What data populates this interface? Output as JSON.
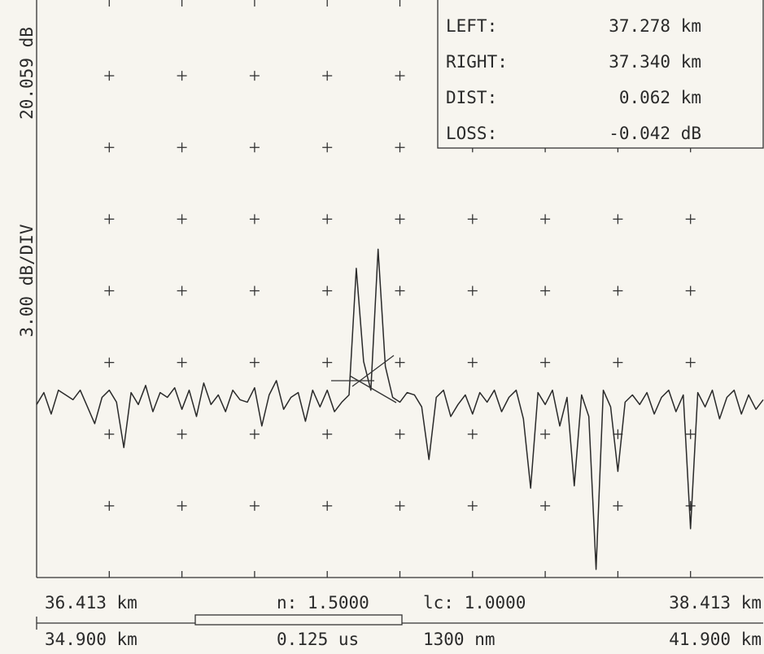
{
  "chart_data": {
    "type": "line",
    "y_label_top": "20.059 dB",
    "y_label": "3.00 dB/DIV",
    "xlim": [
      36.413,
      38.413
    ],
    "xticks": [
      {
        "value": 36.413,
        "label": "36.413 km"
      },
      {
        "value": 38.413,
        "label": "38.413 km"
      }
    ],
    "ylim": [
      -3.941,
      20.059
    ],
    "grid_x": [
      36.613,
      36.813,
      37.013,
      37.213,
      37.413,
      37.613,
      37.813,
      38.013,
      38.213
    ],
    "grid_y": [
      17.059,
      14.059,
      11.059,
      8.059,
      5.059,
      2.059,
      -0.941
    ],
    "color": "#2a2a2a",
    "x": [
      36.413,
      36.433,
      36.453,
      36.473,
      36.493,
      36.513,
      36.533,
      36.553,
      36.573,
      36.593,
      36.613,
      36.633,
      36.653,
      36.673,
      36.693,
      36.713,
      36.733,
      36.753,
      36.773,
      36.793,
      36.813,
      36.833,
      36.853,
      36.873,
      36.893,
      36.913,
      36.933,
      36.953,
      36.973,
      36.993,
      37.013,
      37.033,
      37.053,
      37.073,
      37.093,
      37.113,
      37.133,
      37.153,
      37.173,
      37.193,
      37.213,
      37.233,
      37.253,
      37.273,
      37.293,
      37.313,
      37.333,
      37.353,
      37.373,
      37.393,
      37.413,
      37.433,
      37.453,
      37.473,
      37.493,
      37.513,
      37.533,
      37.553,
      37.573,
      37.593,
      37.613,
      37.633,
      37.653,
      37.673,
      37.693,
      37.713,
      37.733,
      37.753,
      37.773,
      37.793,
      37.813,
      37.833,
      37.853,
      37.873,
      37.893,
      37.913,
      37.933,
      37.953,
      37.973,
      37.993,
      38.013,
      38.033,
      38.053,
      38.073,
      38.093,
      38.113,
      38.133,
      38.153,
      38.173,
      38.193,
      38.213,
      38.233,
      38.253,
      38.273,
      38.293,
      38.313,
      38.333,
      38.353,
      38.373,
      38.393,
      38.413
    ],
    "values": [
      3.3,
      3.8,
      2.9,
      3.9,
      3.7,
      3.5,
      3.9,
      3.2,
      2.5,
      3.6,
      3.9,
      3.4,
      1.5,
      3.8,
      3.3,
      4.1,
      3.0,
      3.8,
      3.6,
      4.0,
      3.1,
      3.9,
      2.8,
      4.2,
      3.3,
      3.7,
      3.0,
      3.9,
      3.5,
      3.4,
      4.0,
      2.4,
      3.7,
      4.3,
      3.1,
      3.6,
      3.8,
      2.6,
      3.9,
      3.2,
      3.9,
      3.0,
      3.4,
      3.7,
      9.0,
      5.1,
      3.9,
      9.8,
      4.9,
      3.6,
      3.4,
      3.8,
      3.7,
      3.2,
      1.0,
      3.6,
      3.9,
      2.8,
      3.3,
      3.7,
      2.9,
      3.8,
      3.4,
      3.9,
      3.0,
      3.6,
      3.9,
      2.7,
      -0.2,
      3.8,
      3.3,
      3.9,
      2.4,
      3.6,
      -0.1,
      3.7,
      2.8,
      -3.6,
      3.9,
      3.2,
      0.5,
      3.4,
      3.7,
      3.3,
      3.8,
      2.9,
      3.6,
      3.9,
      3.0,
      3.7,
      -1.9,
      3.8,
      3.2,
      3.9,
      2.7,
      3.6,
      3.9,
      2.9,
      3.7,
      3.1,
      3.5
    ],
    "readout": [
      {
        "label": "LEFT:",
        "value": "37.278 km"
      },
      {
        "label": "RIGHT:",
        "value": "37.340 km"
      },
      {
        "label": "DIST:",
        "value": "0.062 km"
      },
      {
        "label": "LOSS:",
        "value": "-0.042 dB"
      }
    ],
    "refractive_index": "n: 1.5000",
    "lc": "lc: 1.0000",
    "span_start": "34.900 km",
    "span_end": "41.900 km",
    "pulse_width": "0.125 us",
    "wavelength": "1300 nm"
  }
}
